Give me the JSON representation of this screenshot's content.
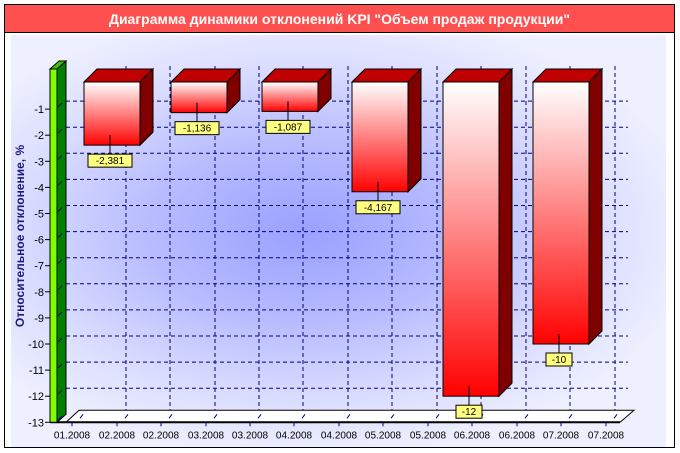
{
  "title": "Диаграмма динамики отклонений KPI \"Объем продаж продукции\"",
  "colors": {
    "title_bar": "#ff5050",
    "bar_front_top": "#ffffff",
    "bar_front_bottom": "#ff0000",
    "bar_top": "#c00000",
    "bar_side": "#800000",
    "axis_front": "#80ff00",
    "axis_side": "#008000",
    "grid": "#000080",
    "label_bg": "#ffff80"
  },
  "chart_data": {
    "type": "bar",
    "title": "Диаграмма динамики отклонений KPI \"Объем продаж продукции\"",
    "xlabel": "",
    "ylabel": "Относительное отклонение, %",
    "ylim": [
      -13,
      0
    ],
    "yticks": [
      "-1",
      "-2",
      "-3",
      "-4",
      "-5",
      "-6",
      "-7",
      "-8",
      "-9",
      "-10",
      "-11",
      "-12",
      "-13"
    ],
    "x_tick_labels": [
      "01.2008",
      "02.2008",
      "02.2008",
      "03.2008",
      "03.2008",
      "04.2008",
      "04.2008",
      "05.2008",
      "05.2008",
      "06.2008",
      "06.2008",
      "07.2008",
      "07.2008"
    ],
    "categories": [
      "02.2008",
      "03.2008",
      "04.2008",
      "05.2008",
      "06.2008",
      "07.2008"
    ],
    "values": [
      -2.381,
      -1.136,
      -1.087,
      -4.167,
      -12,
      -10
    ],
    "value_labels": [
      "-2,381",
      "-1,136",
      "-1,087",
      "-4,167",
      "-12",
      "-10"
    ],
    "grid": true,
    "style": "3d",
    "legend": null
  }
}
